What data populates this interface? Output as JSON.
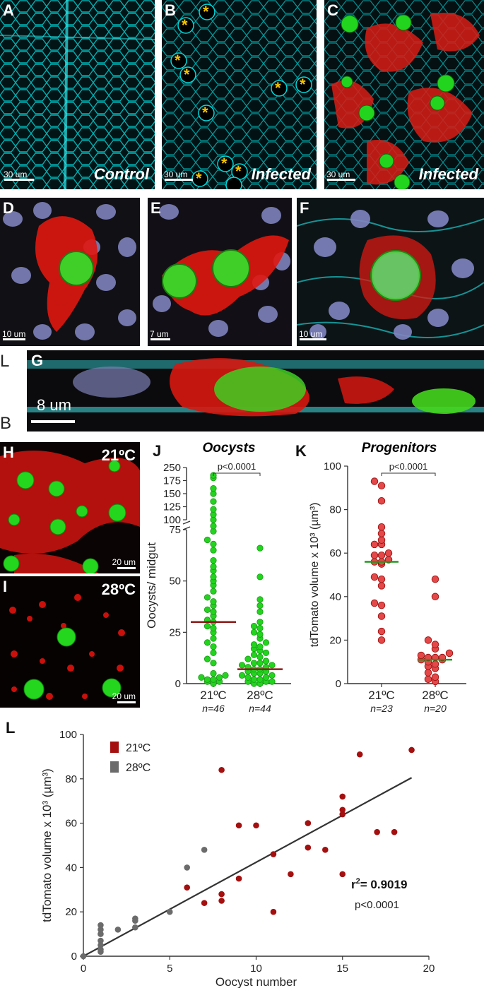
{
  "panels": {
    "A": {
      "label": "A",
      "caption": "Control",
      "scale": "30 um"
    },
    "B": {
      "label": "B",
      "caption": "Infected",
      "scale": "30 um",
      "marker": "*"
    },
    "C": {
      "label": "C",
      "caption": "Infected",
      "scale": "30 um"
    },
    "D": {
      "label": "D",
      "scale": "10 um"
    },
    "E": {
      "label": "E",
      "scale": "7 um"
    },
    "F": {
      "label": "F",
      "scale": "10 um"
    },
    "G": {
      "label": "G",
      "scale": "8 um",
      "side_top": "L",
      "side_bottom": "B"
    },
    "H": {
      "label": "H",
      "temp": "21ºC",
      "scale": "20 um"
    },
    "I": {
      "label": "I",
      "temp": "28ºC",
      "scale": "20 um"
    }
  },
  "colors": {
    "cyan": "#00e5e8",
    "red": "#e8130f",
    "green": "#22d41e",
    "nuclei": "#8a8fc8",
    "dark_red": "#a40f0f",
    "grey": "#6b6b6b",
    "median_J": "#8b1a1a",
    "median_K": "#1f9a1f"
  },
  "chart_data": [
    {
      "id": "J",
      "type": "scatter",
      "title": "Oocysts",
      "ylabel": "Oocysts/ midgut",
      "categories": [
        "21ºC",
        "28ºC"
      ],
      "n_labels": [
        "n=46",
        "n=44"
      ],
      "yticks_lower": [
        "0",
        "25",
        "50",
        "75"
      ],
      "yticks_upper": [
        "100",
        "125",
        "150",
        "175",
        "250"
      ],
      "pvalue": "p<0.0001",
      "series": [
        {
          "x": "21ºC",
          "median": 30,
          "values": [
            205,
            190,
            160,
            150,
            135,
            120,
            110,
            100,
            88,
            78,
            70,
            68,
            65,
            60,
            57,
            55,
            52,
            50,
            48,
            45,
            42,
            40,
            38,
            36,
            35,
            33,
            31,
            30,
            28,
            27,
            25,
            22,
            20,
            18,
            15,
            12,
            10,
            5,
            4,
            3,
            3,
            2,
            2,
            1,
            1,
            0
          ]
        },
        {
          "x": "28ºC",
          "median": 7,
          "values": [
            66,
            52,
            41,
            38,
            35,
            30,
            28,
            27,
            25,
            24,
            22,
            20,
            19,
            18,
            17,
            16,
            15,
            14,
            13,
            12,
            11,
            10,
            10,
            9,
            9,
            8,
            8,
            7,
            7,
            6,
            6,
            5,
            5,
            4,
            4,
            3,
            3,
            2,
            2,
            1,
            1,
            1,
            0,
            0
          ]
        }
      ]
    },
    {
      "id": "K",
      "type": "scatter",
      "title": "Progenitors",
      "ylabel": "tdTomato volume x 10³ (µm³)",
      "ylim": [
        0,
        100
      ],
      "yticks": [
        "0",
        "20",
        "40",
        "60",
        "80",
        "100"
      ],
      "categories": [
        "21ºC",
        "28ºC"
      ],
      "n_labels": [
        "n=23",
        "n=20"
      ],
      "pvalue": "p<0.0001",
      "series": [
        {
          "x": "21ºC",
          "median": 56,
          "values": [
            93,
            91,
            84,
            72,
            69,
            66,
            64,
            64,
            60,
            59,
            59,
            57,
            56,
            56,
            55,
            49,
            48,
            45,
            37,
            36,
            31,
            24,
            20
          ]
        },
        {
          "x": "28ºC",
          "median": 11,
          "values": [
            48,
            40,
            20,
            18,
            16,
            14,
            13,
            12,
            12,
            12,
            11,
            11,
            10,
            9,
            8,
            7,
            5,
            3,
            2,
            1
          ]
        }
      ]
    },
    {
      "id": "L",
      "type": "scatter",
      "xlabel": "Oocyst number",
      "ylabel": "tdTomato volume x 10³ (µm³)",
      "xlim": [
        0,
        20
      ],
      "ylim": [
        0,
        100
      ],
      "xticks": [
        "0",
        "5",
        "10",
        "15",
        "20"
      ],
      "yticks": [
        "0",
        "20",
        "40",
        "60",
        "80",
        "100"
      ],
      "legend": [
        {
          "name": "21ºC"
        },
        {
          "name": "28ºC"
        }
      ],
      "r2_prefix": "r",
      "r2_sup": "2",
      "r2_value": "= 0.9019",
      "pvalue": "p<0.0001",
      "regression": {
        "x": [
          0,
          19
        ],
        "y": [
          0,
          80.5
        ]
      },
      "series": [
        {
          "name": "21ºC",
          "points": [
            [
              8,
              84
            ],
            [
              16,
              91
            ],
            [
              19,
              93
            ],
            [
              15,
              72
            ],
            [
              15,
              66
            ],
            [
              15,
              64
            ],
            [
              17,
              56
            ],
            [
              18,
              56
            ],
            [
              9,
              59
            ],
            [
              10,
              59
            ],
            [
              13,
              60
            ],
            [
              13,
              49
            ],
            [
              14,
              48
            ],
            [
              11,
              46
            ],
            [
              12,
              37
            ],
            [
              15,
              37
            ],
            [
              9,
              35
            ],
            [
              6,
              31
            ],
            [
              8,
              28
            ],
            [
              8,
              25
            ],
            [
              7,
              24
            ],
            [
              11,
              20
            ]
          ]
        },
        {
          "name": "28ºC",
          "points": [
            [
              7,
              48
            ],
            [
              6,
              40
            ],
            [
              5,
              20
            ],
            [
              3,
              17
            ],
            [
              3,
              16
            ],
            [
              3,
              13
            ],
            [
              2,
              12
            ],
            [
              1,
              14
            ],
            [
              1,
              12
            ],
            [
              1,
              10
            ],
            [
              1,
              7
            ],
            [
              1,
              5
            ],
            [
              1,
              3
            ],
            [
              1,
              2
            ],
            [
              0,
              0
            ]
          ]
        }
      ]
    }
  ]
}
